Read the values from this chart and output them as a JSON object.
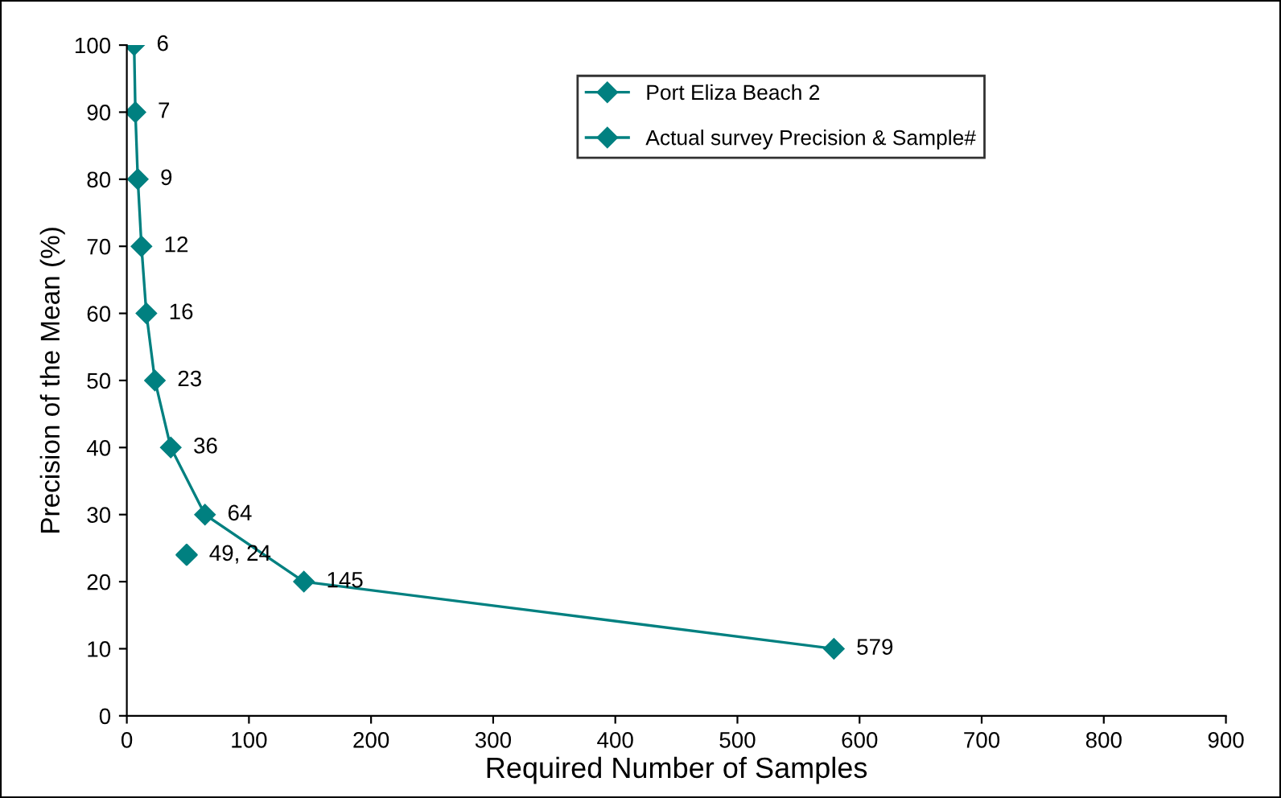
{
  "chart_data": {
    "type": "line",
    "xlabel": "Required Number of Samples",
    "ylabel": "Precision of the Mean (%)",
    "xlim": [
      0,
      900
    ],
    "xticks": [
      0,
      100,
      200,
      300,
      400,
      500,
      600,
      700,
      800,
      900
    ],
    "ylim": [
      0,
      100
    ],
    "yticks": [
      0,
      10,
      20,
      30,
      40,
      50,
      60,
      70,
      80,
      90,
      100
    ],
    "grid": false,
    "legend": "top right",
    "marker": "diamond",
    "line_style": "solid",
    "series": [
      {
        "name": "Port Eliza Beach 2",
        "color": "#008080",
        "x": [
          6,
          7,
          9,
          12,
          16,
          23,
          36,
          64,
          145,
          579
        ],
        "values": [
          100,
          90,
          80,
          70,
          60,
          50,
          40,
          30,
          20,
          10
        ]
      },
      {
        "name": "Actual survey Precision & Sample#",
        "color": "#008080",
        "type": "scatter",
        "x": [
          49
        ],
        "values": [
          24
        ]
      }
    ],
    "annotations": [
      {
        "text": "6",
        "x": 6,
        "y": 100
      },
      {
        "text": "7",
        "x": 7,
        "y": 90
      },
      {
        "text": "9",
        "x": 9,
        "y": 80
      },
      {
        "text": "12",
        "x": 12,
        "y": 70
      },
      {
        "text": "16",
        "x": 16,
        "y": 60
      },
      {
        "text": "23",
        "x": 23,
        "y": 50
      },
      {
        "text": "36",
        "x": 36,
        "y": 40
      },
      {
        "text": "64",
        "x": 64,
        "y": 30
      },
      {
        "text": "145",
        "x": 145,
        "y": 20
      },
      {
        "text": "579",
        "x": 579,
        "y": 10
      },
      {
        "text": "49, 24",
        "x": 49,
        "y": 24
      }
    ]
  }
}
